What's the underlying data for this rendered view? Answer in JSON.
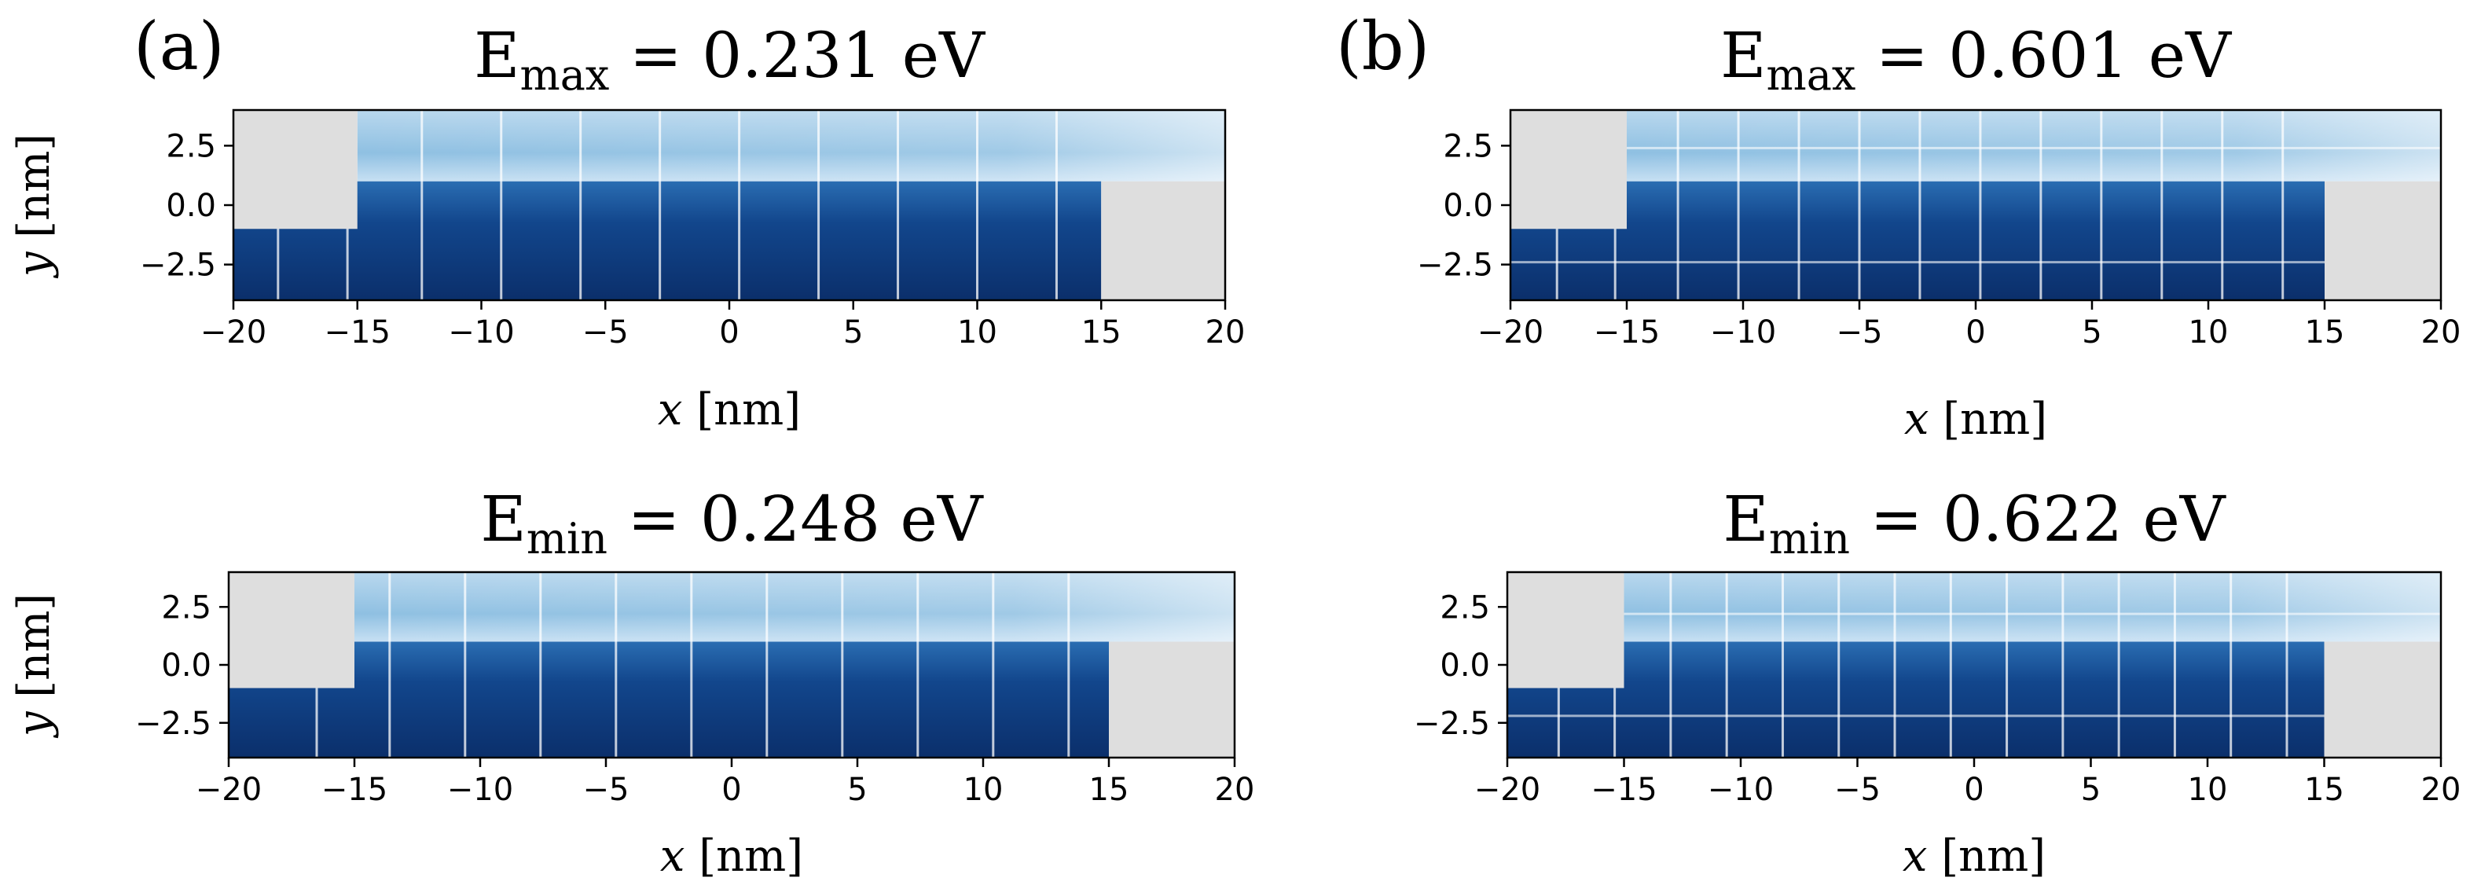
{
  "figure": {
    "panel_labels": [
      "(a)",
      "(b)"
    ]
  },
  "colors": {
    "blocked": "#dedede",
    "axis": "#000000",
    "deep_blue": "#0b2f6b",
    "mid_blue": "#2f73b4",
    "light_blue": "#9ecae1",
    "pale_blue": "#e6f0fa"
  },
  "chart_data": [
    {
      "type": "heatmap",
      "panel": "(a)",
      "title_symbol": "E",
      "title_subscript": "max",
      "title_value": "= 0.231 eV",
      "xlabel_var": "x",
      "xlabel_unit": " [nm]",
      "ylabel_var": "y",
      "ylabel_unit": " [nm]",
      "xlim": [
        -20,
        20
      ],
      "ylim": [
        -4,
        4
      ],
      "xticks": [
        -20,
        -15,
        -10,
        -5,
        0,
        5,
        10,
        15,
        20
      ],
      "xtick_labels": [
        "−20",
        "−15",
        "−10",
        "−5",
        "0",
        "5",
        "10",
        "15",
        "20"
      ],
      "yticks": [
        2.5,
        0.0,
        -2.5
      ],
      "ytick_labels": [
        "2.5",
        "0.0",
        "−2.5"
      ],
      "blocked_regions": [
        {
          "x": [
            -20,
            -15
          ],
          "y": [
            -1,
            4
          ]
        },
        {
          "x": [
            15,
            20
          ],
          "y": [
            -4,
            1
          ]
        }
      ],
      "lower_channel": {
        "x": [
          -20,
          15
        ],
        "y": [
          -4,
          1
        ]
      },
      "upper_channel": {
        "x": [
          -15,
          20
        ],
        "y": [
          1,
          4
        ]
      },
      "nodal_lines_x": [
        -18.2,
        -15.4,
        -12.4,
        -9.2,
        -6.0,
        -2.8,
        0.4,
        3.6,
        6.8,
        10.0,
        13.2
      ],
      "nodal_lines_y": []
    },
    {
      "type": "heatmap",
      "panel": "(b)",
      "title_symbol": "E",
      "title_subscript": "max",
      "title_value": "= 0.601 eV",
      "xlabel_var": "x",
      "xlabel_unit": " [nm]",
      "ylabel_var": "y",
      "ylabel_unit": " [nm]",
      "xlim": [
        -20,
        20
      ],
      "ylim": [
        -4,
        4
      ],
      "xticks": [
        -20,
        -15,
        -10,
        -5,
        0,
        5,
        10,
        15,
        20
      ],
      "xtick_labels": [
        "−20",
        "−15",
        "−10",
        "−5",
        "0",
        "5",
        "10",
        "15",
        "20"
      ],
      "yticks": [
        2.5,
        0.0,
        -2.5
      ],
      "ytick_labels": [
        "2.5",
        "0.0",
        "−2.5"
      ],
      "blocked_regions": [
        {
          "x": [
            -20,
            -15
          ],
          "y": [
            -1,
            4
          ]
        },
        {
          "x": [
            15,
            20
          ],
          "y": [
            -4,
            1
          ]
        }
      ],
      "lower_channel": {
        "x": [
          -20,
          15
        ],
        "y": [
          -4,
          1
        ]
      },
      "upper_channel": {
        "x": [
          -15,
          20
        ],
        "y": [
          1,
          4
        ]
      },
      "nodal_lines_x": [
        -18.0,
        -15.5,
        -12.8,
        -10.2,
        -7.6,
        -5.0,
        -2.4,
        0.2,
        2.8,
        5.4,
        8.0,
        10.6,
        13.2
      ],
      "nodal_lines_y": [
        2.4,
        -2.4
      ]
    },
    {
      "type": "heatmap",
      "panel": "(a)",
      "title_symbol": "E",
      "title_subscript": "min",
      "title_value": "= 0.248 eV",
      "xlabel_var": "x",
      "xlabel_unit": " [nm]",
      "ylabel_var": "y",
      "ylabel_unit": " [nm]",
      "xlim": [
        -20,
        20
      ],
      "ylim": [
        -4,
        4
      ],
      "xticks": [
        -20,
        -15,
        -10,
        -5,
        0,
        5,
        10,
        15,
        20
      ],
      "xtick_labels": [
        "−20",
        "−15",
        "−10",
        "−5",
        "0",
        "5",
        "10",
        "15",
        "20"
      ],
      "yticks": [
        2.5,
        0.0,
        -2.5
      ],
      "ytick_labels": [
        "2.5",
        "0.0",
        "−2.5"
      ],
      "blocked_regions": [
        {
          "x": [
            -20,
            -15
          ],
          "y": [
            -1,
            4
          ]
        },
        {
          "x": [
            15,
            20
          ],
          "y": [
            -4,
            1
          ]
        }
      ],
      "lower_channel": {
        "x": [
          -20,
          15
        ],
        "y": [
          -4,
          1
        ]
      },
      "upper_channel": {
        "x": [
          -15,
          20
        ],
        "y": [
          1,
          4
        ]
      },
      "nodal_lines_x": [
        -16.5,
        -13.6,
        -10.6,
        -7.6,
        -4.6,
        -1.6,
        1.4,
        4.4,
        7.4,
        10.4,
        13.4
      ],
      "nodal_lines_y": []
    },
    {
      "type": "heatmap",
      "panel": "(b)",
      "title_symbol": "E",
      "title_subscript": "min",
      "title_value": "= 0.622 eV",
      "xlabel_var": "x",
      "xlabel_unit": " [nm]",
      "ylabel_var": "y",
      "ylabel_unit": " [nm]",
      "xlim": [
        -20,
        20
      ],
      "ylim": [
        -4,
        4
      ],
      "xticks": [
        -20,
        -15,
        -10,
        -5,
        0,
        5,
        10,
        15,
        20
      ],
      "xtick_labels": [
        "−20",
        "−15",
        "−10",
        "−5",
        "0",
        "5",
        "10",
        "15",
        "20"
      ],
      "yticks": [
        2.5,
        0.0,
        -2.5
      ],
      "ytick_labels": [
        "2.5",
        "0.0",
        "−2.5"
      ],
      "blocked_regions": [
        {
          "x": [
            -20,
            -15
          ],
          "y": [
            -1,
            4
          ]
        },
        {
          "x": [
            15,
            20
          ],
          "y": [
            -4,
            1
          ]
        }
      ],
      "lower_channel": {
        "x": [
          -20,
          15
        ],
        "y": [
          -4,
          1
        ]
      },
      "upper_channel": {
        "x": [
          -15,
          20
        ],
        "y": [
          1,
          4
        ]
      },
      "nodal_lines_x": [
        -17.8,
        -15.4,
        -13.0,
        -10.6,
        -8.2,
        -5.8,
        -3.4,
        -1.0,
        1.4,
        3.8,
        6.2,
        8.6,
        11.0,
        13.4
      ],
      "nodal_lines_y": [
        2.2,
        -2.2
      ]
    }
  ]
}
